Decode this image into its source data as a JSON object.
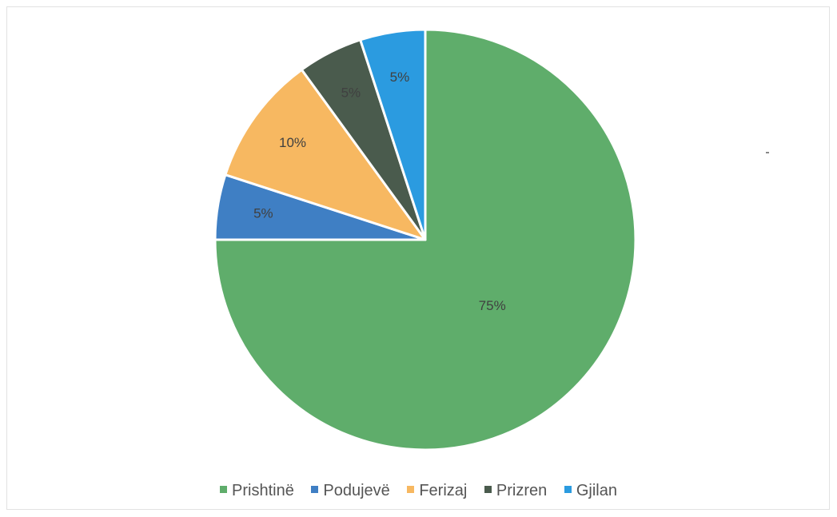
{
  "chart_data": {
    "type": "pie",
    "title": "",
    "start_angle_deg": 0,
    "direction": "clockwise",
    "slices": [
      {
        "label": "Prishtinë",
        "value": 75,
        "data_label": "75%",
        "color": "#5fad6b"
      },
      {
        "label": "Podujevë",
        "value": 5,
        "data_label": "5%",
        "color": "#3f7fc4"
      },
      {
        "label": "Ferizaj",
        "value": 10,
        "data_label": "10%",
        "color": "#f7b861"
      },
      {
        "label": "Prizren",
        "value": 5,
        "data_label": "5%",
        "color": "#4a5b4d"
      },
      {
        "label": "Gjilan",
        "value": 5,
        "data_label": "5%",
        "color": "#2b9be0"
      }
    ],
    "legend_position": "bottom"
  },
  "legend": [
    {
      "label": "Prishtinë",
      "color": "#5fad6b"
    },
    {
      "label": "Podujevë",
      "color": "#3f7fc4"
    },
    {
      "label": "Ferizaj",
      "color": "#f7b861"
    },
    {
      "label": "Prizren",
      "color": "#4a5b4d"
    },
    {
      "label": "Gjilan",
      "color": "#2b9be0"
    }
  ]
}
